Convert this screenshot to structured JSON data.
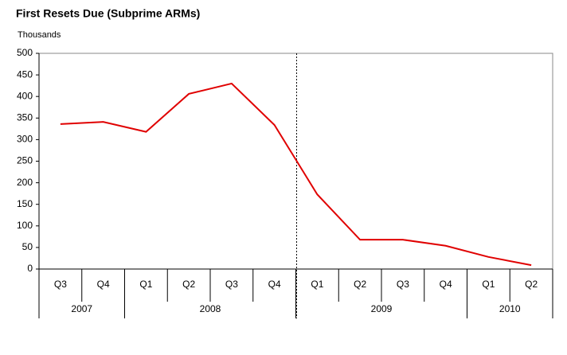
{
  "chart_data": {
    "type": "line",
    "title": "First Resets Due (Subprime ARMs)",
    "y_label": "Thousands",
    "categories": [
      "Q3",
      "Q4",
      "Q1",
      "Q2",
      "Q3",
      "Q4",
      "Q1",
      "Q2",
      "Q3",
      "Q4",
      "Q1",
      "Q2"
    ],
    "groups": [
      {
        "label": "2007",
        "span": 2
      },
      {
        "label": "2008",
        "span": 4
      },
      {
        "label": "2009",
        "span": 4
      },
      {
        "label": "2010",
        "span": 2
      }
    ],
    "series": [
      {
        "name": "First Resets Due",
        "color": "#e00000",
        "values": [
          336,
          341,
          318,
          406,
          430,
          334,
          173,
          68,
          68,
          54,
          28,
          9
        ]
      }
    ],
    "ylim": [
      0,
      500
    ],
    "yticks": [
      0,
      50,
      100,
      150,
      200,
      250,
      300,
      350,
      400,
      450,
      500
    ],
    "grid": false
  }
}
